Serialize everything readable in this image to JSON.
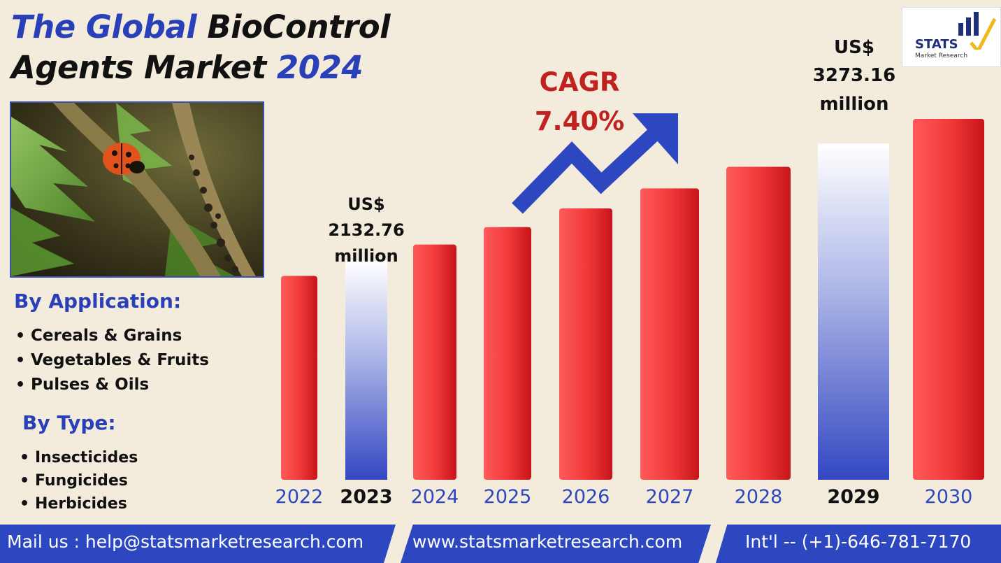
{
  "title": {
    "part1_blue": "The Global",
    "part1_black": " BioControl",
    "part2_black": "Agents Market ",
    "part2_blue": "2024"
  },
  "logo": {
    "line1": "STATS",
    "line2": "Market Research"
  },
  "sections": {
    "application": {
      "heading": "By Application:",
      "items": [
        "Cereals & Grains",
        "Vegetables & Fruits",
        "Pulses & Oils"
      ]
    },
    "type": {
      "heading": "By Type:",
      "items": [
        "Insecticides",
        "Fungicides",
        "Herbicides"
      ]
    }
  },
  "callouts": {
    "y2023": {
      "line1": "US$",
      "line2": "2132.76",
      "line3": "million"
    },
    "y2029": {
      "line1": "US$",
      "line2": "3273.16",
      "line3": "million"
    },
    "cagr": {
      "label": "CAGR",
      "value": "7.40%"
    }
  },
  "footer": {
    "mail": "Mail us : help@statsmarketresearch.com",
    "web": "www.statsmarketresearch.com",
    "phone": "Int'l -- (+1)-646-781-7170"
  },
  "colors": {
    "accent_blue": "#2d47c0",
    "bar_red": "#e8262a",
    "cagr_red": "#c0221f",
    "background": "#f3ecdd"
  },
  "chart_data": {
    "type": "bar",
    "categories": [
      "2022",
      "2023",
      "2024",
      "2025",
      "2026",
      "2027",
      "2028",
      "2029",
      "2030"
    ],
    "values": [
      1986,
      2132.76,
      2291,
      2461,
      2643,
      2838,
      3048,
      3273.16,
      3515
    ],
    "highlighted": [
      "2023",
      "2029"
    ],
    "ylim": [
      0,
      3600
    ],
    "grid": false,
    "legend": "none"
  }
}
